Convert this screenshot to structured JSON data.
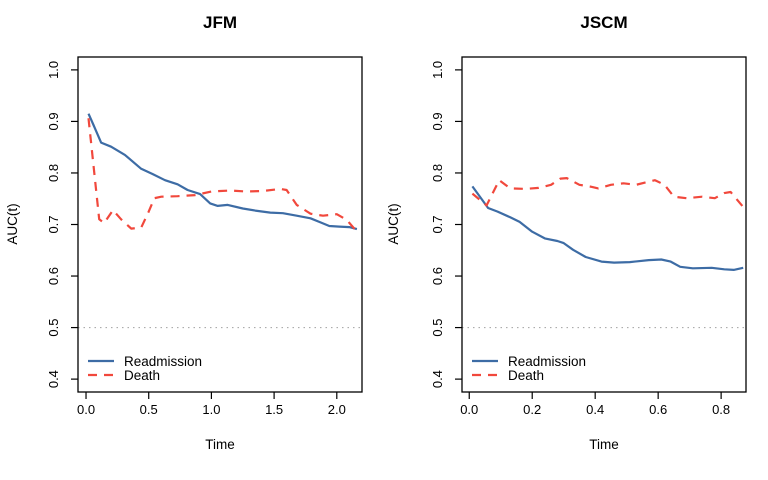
{
  "figure": {
    "background": "#ffffff",
    "colors": {
      "readmission": "#3d6ca5",
      "death": "#f1483c",
      "reference": "#a0a0a0",
      "axis": "#000000"
    },
    "legend_items": [
      "Readmission",
      "Death"
    ]
  },
  "chart_data": [
    {
      "type": "line",
      "title": "JFM",
      "xlabel": "Time",
      "ylabel": "AUC(t)",
      "xlim": [
        -0.064,
        2.201
      ],
      "ylim": [
        0.375,
        1.025
      ],
      "x_ticks": [
        0.0,
        0.5,
        1.0,
        1.5,
        2.0
      ],
      "x_tick_labels": [
        "0.0",
        "0.5",
        "1.0",
        "1.5",
        "2.0"
      ],
      "y_ticks": [
        0.4,
        0.5,
        0.6,
        0.7,
        0.8,
        0.9,
        1.0
      ],
      "y_tick_labels": [
        "0.4",
        "0.5",
        "0.6",
        "0.7",
        "0.8",
        "0.9",
        "1.0"
      ],
      "reference_line_y": 0.5,
      "grid": false,
      "legend_position": "bottom-left",
      "series": [
        {
          "name": "Readmission",
          "style": "solid",
          "color_key": "readmission",
          "x": [
            0.02,
            0.06,
            0.12,
            0.2,
            0.31,
            0.44,
            0.53,
            0.63,
            0.73,
            0.81,
            0.91,
            0.99,
            1.05,
            1.13,
            1.25,
            1.35,
            1.47,
            1.57,
            1.68,
            1.79,
            1.87,
            1.94,
            2.02,
            2.1,
            2.16
          ],
          "y": [
            0.915,
            0.893,
            0.859,
            0.851,
            0.835,
            0.808,
            0.798,
            0.786,
            0.778,
            0.767,
            0.759,
            0.741,
            0.736,
            0.738,
            0.731,
            0.727,
            0.723,
            0.722,
            0.717,
            0.712,
            0.704,
            0.697,
            0.696,
            0.695,
            0.691
          ]
        },
        {
          "name": "Death",
          "style": "dashed",
          "color_key": "death",
          "x": [
            0.02,
            0.105,
            0.145,
            0.215,
            0.28,
            0.36,
            0.44,
            0.5,
            0.545,
            0.6,
            0.73,
            0.87,
            1.0,
            1.15,
            1.28,
            1.41,
            1.55,
            1.6,
            1.68,
            1.79,
            1.89,
            2.0,
            2.08,
            2.16
          ],
          "y": [
            0.906,
            0.71,
            0.703,
            0.728,
            0.71,
            0.692,
            0.694,
            0.725,
            0.751,
            0.754,
            0.755,
            0.757,
            0.764,
            0.766,
            0.764,
            0.765,
            0.769,
            0.767,
            0.738,
            0.721,
            0.717,
            0.72,
            0.709,
            0.686
          ]
        }
      ]
    },
    {
      "type": "line",
      "title": "JSCM",
      "xlabel": "Time",
      "ylabel": "AUC(t)",
      "xlim": [
        -0.023,
        0.879
      ],
      "ylim": [
        0.375,
        1.025
      ],
      "x_ticks": [
        0.0,
        0.2,
        0.4,
        0.6,
        0.8
      ],
      "x_tick_labels": [
        "0.0",
        "0.2",
        "0.4",
        "0.6",
        "0.8"
      ],
      "y_ticks": [
        0.4,
        0.5,
        0.6,
        0.7,
        0.8,
        0.9,
        1.0
      ],
      "y_tick_labels": [
        "0.4",
        "0.5",
        "0.6",
        "0.7",
        "0.8",
        "0.9",
        "1.0"
      ],
      "reference_line_y": 0.5,
      "grid": false,
      "legend_position": "bottom-left",
      "series": [
        {
          "name": "Readmission",
          "style": "solid",
          "color_key": "readmission",
          "x": [
            0.01,
            0.06,
            0.09,
            0.13,
            0.16,
            0.2,
            0.24,
            0.28,
            0.3,
            0.33,
            0.37,
            0.42,
            0.46,
            0.51,
            0.57,
            0.61,
            0.64,
            0.67,
            0.71,
            0.77,
            0.81,
            0.84,
            0.87
          ],
          "y": [
            0.774,
            0.732,
            0.725,
            0.714,
            0.705,
            0.686,
            0.673,
            0.668,
            0.664,
            0.651,
            0.637,
            0.628,
            0.626,
            0.627,
            0.631,
            0.632,
            0.628,
            0.618,
            0.615,
            0.616,
            0.613,
            0.612,
            0.616
          ]
        },
        {
          "name": "Death",
          "style": "dashed",
          "color_key": "death",
          "x": [
            0.01,
            0.055,
            0.095,
            0.13,
            0.18,
            0.22,
            0.26,
            0.29,
            0.31,
            0.35,
            0.39,
            0.41,
            0.45,
            0.49,
            0.53,
            0.57,
            0.59,
            0.62,
            0.65,
            0.69,
            0.74,
            0.78,
            0.81,
            0.83,
            0.87
          ],
          "y": [
            0.76,
            0.737,
            0.786,
            0.77,
            0.769,
            0.771,
            0.777,
            0.789,
            0.79,
            0.777,
            0.773,
            0.77,
            0.777,
            0.78,
            0.777,
            0.783,
            0.786,
            0.777,
            0.754,
            0.751,
            0.754,
            0.751,
            0.761,
            0.763,
            0.734
          ]
        }
      ]
    }
  ]
}
